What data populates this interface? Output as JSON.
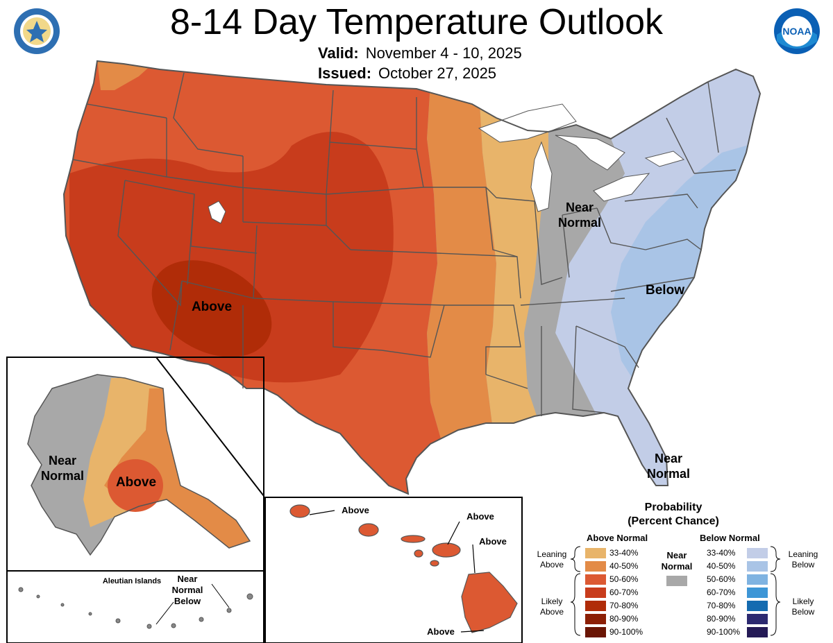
{
  "header": {
    "title": "8-14 Day Temperature Outlook",
    "valid_label": "Valid:",
    "valid_value": "November 4 - 10, 2025",
    "issued_label": "Issued:",
    "issued_value": "October 27, 2025"
  },
  "logos": {
    "left": "department-of-commerce-seal",
    "right": "noaa-logo",
    "noaa_text": "NOAA"
  },
  "map_labels": {
    "conus_above": "Above",
    "conus_near_normal": "Near Normal",
    "conus_below": "Below",
    "florida_near_normal": "Near Normal",
    "alaska_near_normal": "Near Normal",
    "alaska_above": "Above",
    "aleutian_title": "Aleutian Islands",
    "aleutian_near_normal_below": "Near Normal Below",
    "hawaii_above_1": "Above",
    "hawaii_above_2": "Above",
    "hawaii_above_3": "Above",
    "hawaii_above_4": "Above"
  },
  "legend": {
    "title_line1": "Probability",
    "title_line2": "(Percent Chance)",
    "above_header": "Above Normal",
    "below_header": "Below Normal",
    "near_normal_label": "Near Normal",
    "leaning_above": "Leaning Above",
    "likely_above": "Likely Above",
    "leaning_below": "Leaning Below",
    "likely_below": "Likely Below",
    "above_bins": [
      {
        "range": "33-40%",
        "color": "#e8b46a"
      },
      {
        "range": "40-50%",
        "color": "#e38b47"
      },
      {
        "range": "50-60%",
        "color": "#dc5932"
      },
      {
        "range": "60-70%",
        "color": "#c83c1c"
      },
      {
        "range": "70-80%",
        "color": "#b02c08"
      },
      {
        "range": "80-90%",
        "color": "#8c1f05"
      },
      {
        "range": "90-100%",
        "color": "#6a1504"
      }
    ],
    "below_bins": [
      {
        "range": "33-40%",
        "color": "#c2cde7"
      },
      {
        "range": "40-50%",
        "color": "#a9c4e6"
      },
      {
        "range": "50-60%",
        "color": "#7fb3e1"
      },
      {
        "range": "60-70%",
        "color": "#3d96d6"
      },
      {
        "range": "70-80%",
        "color": "#146bb0"
      },
      {
        "range": "80-90%",
        "color": "#2c2970"
      },
      {
        "range": "90-100%",
        "color": "#241a56"
      }
    ],
    "near_normal_color": "#a8a8a8"
  },
  "colors": {
    "state_border": "#555555",
    "lakes": "#ffffff"
  }
}
